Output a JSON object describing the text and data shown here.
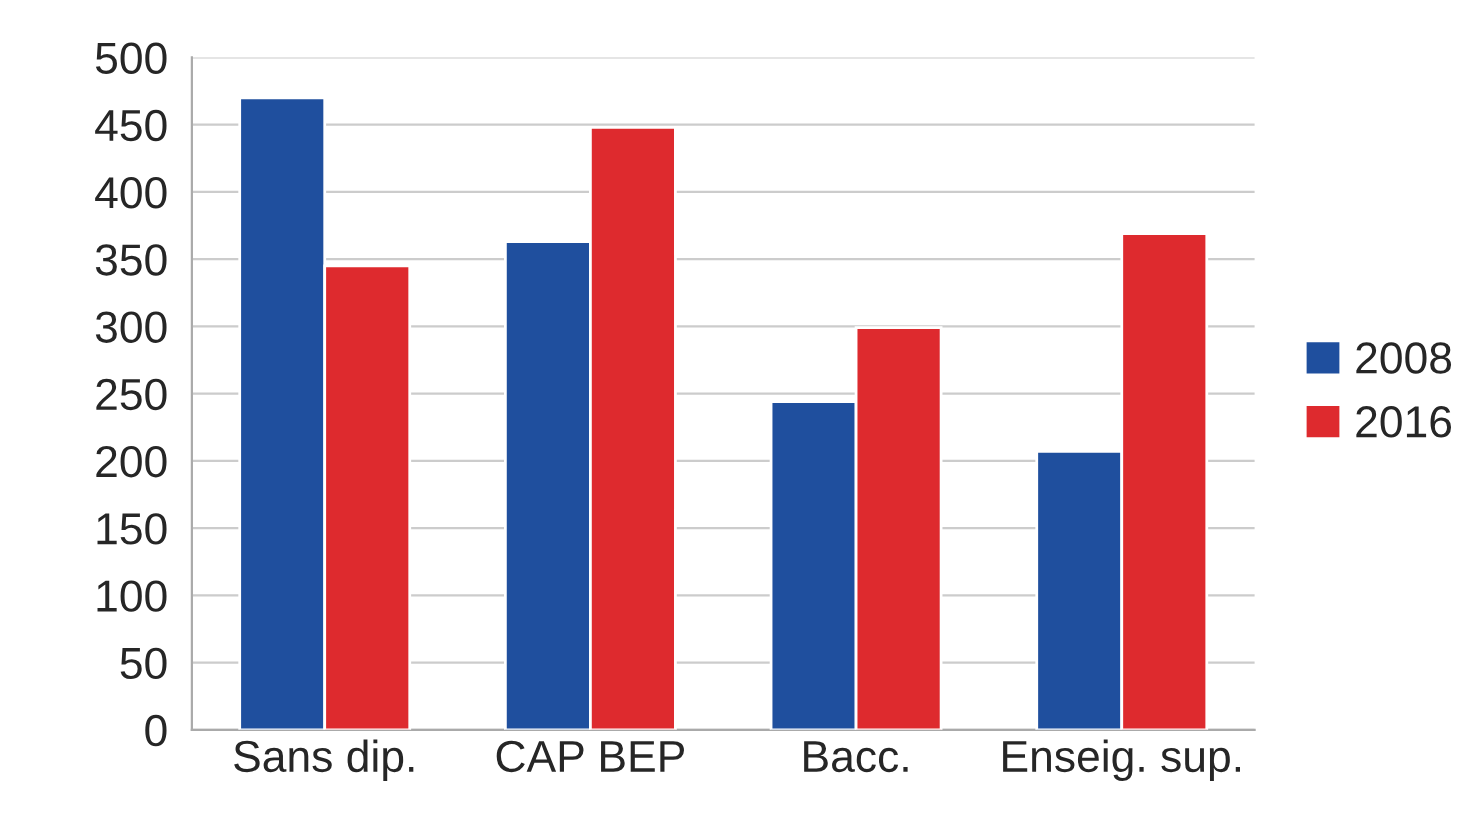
{
  "chart_data": {
    "type": "bar",
    "categories": [
      "Sans dip.",
      "CAP BEP",
      "Bacc.",
      "Enseig. sup."
    ],
    "series": [
      {
        "name": "2008",
        "color": "#1f4f9e",
        "values": [
          470,
          363,
          244,
          207
        ]
      },
      {
        "name": "2016",
        "color": "#de2a2e",
        "values": [
          345,
          448,
          299,
          369
        ]
      }
    ],
    "ylim": [
      0,
      500
    ],
    "yticks": [
      0,
      50,
      100,
      150,
      200,
      250,
      300,
      350,
      400,
      450,
      500
    ],
    "grid": "y",
    "legend": "right"
  }
}
